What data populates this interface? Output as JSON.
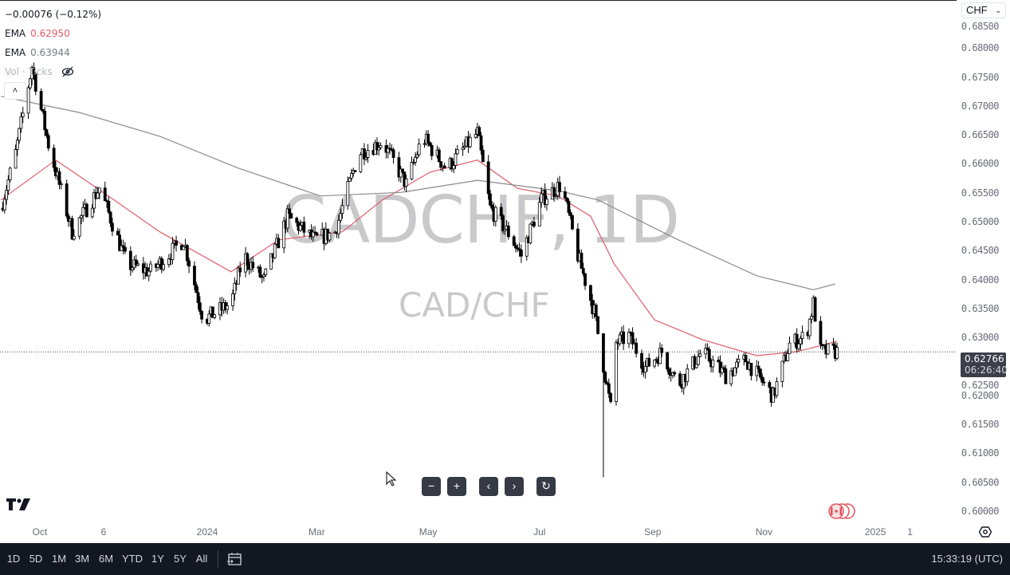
{
  "symbol": "CADCHF, 1D",
  "name": "CAD/CHF",
  "legend": {
    "change": "−0.00076 (−0.12%)",
    "ema1_label": "EMA",
    "ema1_value": "0.62950",
    "ema1_color": "#e05c6a",
    "ema2_label": "EMA",
    "ema2_value": "0.63944",
    "ema2_color": "#8a8a8a",
    "volume_label": "Vol · Ticks",
    "volume_icon": "eye-off-icon",
    "collapse_icon": "chevron-up-icon"
  },
  "currency_select": "CHF",
  "last_price": {
    "value": "0.62766",
    "countdown": "06:26:40"
  },
  "nav_buttons": [
    "zoom-out",
    "zoom-in",
    "scroll-left",
    "scroll-right",
    "reset"
  ],
  "bottom_bar": {
    "ranges": [
      "1D",
      "5D",
      "1M",
      "3M",
      "6M",
      "YTD",
      "1Y",
      "5Y",
      "All"
    ],
    "clock": "15:33:19 (UTC)"
  },
  "colors": {
    "candle": "#000000",
    "ema_fast": "#e05c6a",
    "ema_slow": "#8a8a8a",
    "price_line": "#3c3f4a",
    "event": "#e0525d"
  },
  "chart_data": {
    "type": "candlestick",
    "ylim": [
      0.5985,
      0.6875
    ],
    "yticks": [
      "0.68500",
      "0.68000",
      "0.67500",
      "0.67000",
      "0.66500",
      "0.66000",
      "0.65500",
      "0.65000",
      "0.64500",
      "0.64000",
      "0.63500",
      "0.63000",
      "0.62500",
      "0.62000",
      "0.61500",
      "0.61000",
      "0.60500",
      "0.60000"
    ],
    "xticks": [
      {
        "label": "Oct",
        "date": "2023-10-01"
      },
      {
        "label": "6",
        "date": "2023-11-06"
      },
      {
        "label": "2024",
        "date": "2024-01-01"
      },
      {
        "label": "Mar",
        "date": "2024-03-01"
      },
      {
        "label": "May",
        "date": "2024-05-01"
      },
      {
        "label": "Jul",
        "date": "2024-07-01"
      },
      {
        "label": "Sep",
        "date": "2024-09-01"
      },
      {
        "label": "Nov",
        "date": "2024-11-01"
      },
      {
        "label": "2025",
        "date": "2025-01-01"
      },
      {
        "label": "1",
        "date": "2025-01-20"
      }
    ],
    "close_path": [
      [
        "2023-09-10",
        0.6525
      ],
      [
        "2023-09-18",
        0.662
      ],
      [
        "2023-09-27",
        0.677
      ],
      [
        "2023-10-06",
        0.6635
      ],
      [
        "2023-10-19",
        0.6484
      ],
      [
        "2023-11-03",
        0.656
      ],
      [
        "2023-11-18",
        0.6428
      ],
      [
        "2023-12-01",
        0.6415
      ],
      [
        "2023-12-19",
        0.647
      ],
      [
        "2023-12-30",
        0.6332
      ],
      [
        "2024-01-14",
        0.636
      ],
      [
        "2024-01-21",
        0.6443
      ],
      [
        "2024-02-01",
        0.64
      ],
      [
        "2024-02-14",
        0.651
      ],
      [
        "2024-02-29",
        0.647
      ],
      [
        "2024-03-11",
        0.6484
      ],
      [
        "2024-03-24",
        0.662
      ],
      [
        "2024-04-06",
        0.664
      ],
      [
        "2024-04-19",
        0.6566
      ],
      [
        "2024-04-28",
        0.6648
      ],
      [
        "2024-05-11",
        0.6593
      ],
      [
        "2024-05-28",
        0.6655
      ],
      [
        "2024-06-04",
        0.6525
      ],
      [
        "2024-06-15",
        0.6477
      ],
      [
        "2024-06-21",
        0.6443
      ],
      [
        "2024-07-02",
        0.654
      ],
      [
        "2024-07-13",
        0.6566
      ],
      [
        "2024-07-22",
        0.6443
      ],
      [
        "2024-07-31",
        0.6346
      ],
      [
        "2024-08-09",
        0.618
      ],
      [
        "2024-08-11",
        0.629
      ],
      [
        "2024-08-19",
        0.6304
      ],
      [
        "2024-08-28",
        0.625
      ],
      [
        "2024-09-06",
        0.6277
      ],
      [
        "2024-09-15",
        0.622
      ],
      [
        "2024-09-28",
        0.6277
      ],
      [
        "2024-10-11",
        0.6236
      ],
      [
        "2024-10-22",
        0.6263
      ],
      [
        "2024-11-06",
        0.62
      ],
      [
        "2024-11-15",
        0.629
      ],
      [
        "2024-11-24",
        0.6304
      ],
      [
        "2024-11-28",
        0.636
      ],
      [
        "2024-12-02",
        0.6277
      ],
      [
        "2024-12-11",
        0.6277
      ]
    ],
    "spike_low": {
      "date": "2024-08-05",
      "low": 0.606
    },
    "series": [
      {
        "name": "EMA",
        "value": "0.62950",
        "points": [
          [
            "2023-09-10",
            0.6539
          ],
          [
            "2023-10-10",
            0.6608
          ],
          [
            "2023-11-05",
            0.6552
          ],
          [
            "2023-12-06",
            0.6484
          ],
          [
            "2024-01-14",
            0.6415
          ],
          [
            "2024-02-09",
            0.647
          ],
          [
            "2024-03-15",
            0.6484
          ],
          [
            "2024-04-06",
            0.6539
          ],
          [
            "2024-05-02",
            0.6587
          ],
          [
            "2024-05-28",
            0.6608
          ],
          [
            "2024-06-19",
            0.6559
          ],
          [
            "2024-07-11",
            0.6546
          ],
          [
            "2024-07-29",
            0.6511
          ],
          [
            "2024-08-11",
            0.6428
          ],
          [
            "2024-09-02",
            0.6332
          ],
          [
            "2024-09-28",
            0.6298
          ],
          [
            "2024-10-28",
            0.627
          ],
          [
            "2024-11-19",
            0.6277
          ],
          [
            "2024-12-11",
            0.6295
          ]
        ]
      },
      {
        "name": "EMA",
        "value": "0.63944",
        "points": [
          [
            "2023-09-10",
            0.6718
          ],
          [
            "2023-10-23",
            0.669
          ],
          [
            "2023-12-06",
            0.6649
          ],
          [
            "2024-01-18",
            0.6594
          ],
          [
            "2024-03-03",
            0.6546
          ],
          [
            "2024-04-16",
            0.6552
          ],
          [
            "2024-05-28",
            0.6573
          ],
          [
            "2024-07-11",
            0.6555
          ],
          [
            "2024-08-02",
            0.6539
          ],
          [
            "2024-09-15",
            0.647
          ],
          [
            "2024-10-28",
            0.6408
          ],
          [
            "2024-11-28",
            0.6384
          ],
          [
            "2024-12-10",
            0.6394
          ]
        ]
      }
    ],
    "last_close": 0.62766,
    "grid": false
  }
}
